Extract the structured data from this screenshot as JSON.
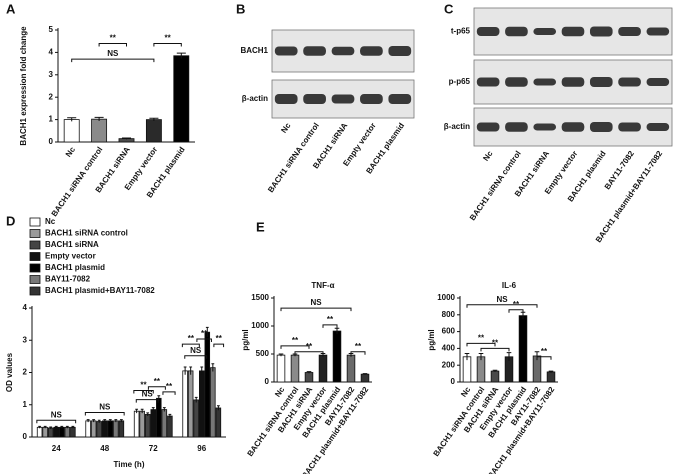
{
  "chart_data": [
    {
      "type": "bar",
      "panel_label": "A",
      "ylabel": "BACH1 expression fold change",
      "categories": [
        "Nc",
        "BACH1 siRNA control",
        "BACH1 siRNA",
        "Empty vector",
        "BACH1 plasmid"
      ],
      "values": [
        1.0,
        1.02,
        0.15,
        1.0,
        3.85
      ],
      "errors": [
        0.08,
        0.08,
        0.03,
        0.06,
        0.12
      ],
      "colors": [
        "#ffffff",
        "#8a8a8a",
        "#4a4a4a",
        "#2a2a2a",
        "#000000"
      ],
      "ylim": [
        0,
        5
      ],
      "yticks": [
        0,
        1,
        2,
        3,
        4,
        5
      ],
      "annotations": [
        "**",
        "NS",
        "**"
      ]
    },
    {
      "type": "bar",
      "panel_label": "D",
      "ylabel": "OD values",
      "xlabel": "Time (h)",
      "categories": [
        "24",
        "48",
        "72",
        "96"
      ],
      "series": [
        {
          "name": "Nc",
          "color": "#ffffff",
          "values": [
            0.3,
            0.5,
            0.8,
            2.05
          ],
          "errors": [
            0.03,
            0.04,
            0.06,
            0.12
          ]
        },
        {
          "name": "BACH1 siRNA control",
          "color": "#9a9a9a",
          "values": [
            0.3,
            0.5,
            0.8,
            2.05
          ],
          "errors": [
            0.03,
            0.04,
            0.06,
            0.12
          ]
        },
        {
          "name": "BACH1 siRNA",
          "color": "#444444",
          "values": [
            0.28,
            0.48,
            0.7,
            1.15
          ],
          "errors": [
            0.03,
            0.04,
            0.05,
            0.08
          ]
        },
        {
          "name": "Empty vector",
          "color": "#111111",
          "values": [
            0.3,
            0.5,
            0.85,
            2.05
          ],
          "errors": [
            0.03,
            0.04,
            0.06,
            0.12
          ]
        },
        {
          "name": "BACH1 plasmid",
          "color": "#000000",
          "values": [
            0.3,
            0.5,
            1.2,
            3.25
          ],
          "errors": [
            0.03,
            0.04,
            0.08,
            0.15
          ]
        },
        {
          "name": "BAY11-7082",
          "color": "#777777",
          "values": [
            0.3,
            0.5,
            0.85,
            2.15
          ],
          "errors": [
            0.03,
            0.04,
            0.06,
            0.12
          ]
        },
        {
          "name": "BACH1 plasmid+BAY11-7082",
          "color": "#333333",
          "values": [
            0.3,
            0.5,
            0.65,
            0.9
          ],
          "errors": [
            0.03,
            0.04,
            0.05,
            0.07
          ]
        }
      ],
      "ylim": [
        0,
        4
      ],
      "yticks": [
        0,
        1,
        2,
        3,
        4
      ],
      "annotations": [
        "NS",
        "NS",
        "**",
        "**",
        "**",
        "NS",
        "**",
        "**",
        "**",
        "NS"
      ]
    },
    {
      "type": "bar",
      "panel_label": "E",
      "title": "TNF-α",
      "ylabel": "pg/ml",
      "categories": [
        "Nc",
        "BACH1 siRNA control",
        "BACH1 siRNA",
        "Empty vector",
        "BACH1 plasmid",
        "BAY11-7082",
        "BACH1 plasmid+BAY11-7082"
      ],
      "values": [
        480,
        480,
        170,
        480,
        910,
        480,
        140
      ],
      "errors": [
        20,
        20,
        15,
        30,
        50,
        30,
        10
      ],
      "colors": [
        "#ffffff",
        "#8a8a8a",
        "#4a4a4a",
        "#222222",
        "#000000",
        "#6a6a6a",
        "#333333"
      ],
      "ylim": [
        0,
        1500
      ],
      "yticks": [
        0,
        500,
        1000,
        1500
      ],
      "annotations": [
        "NS",
        "**",
        "**",
        "**",
        "**"
      ]
    },
    {
      "type": "bar",
      "title": "IL-6",
      "ylabel": "pg/ml",
      "categories": [
        "Nc",
        "BACH1 siRNA control",
        "BACH1 siRNA",
        "Empty vector",
        "BACH1 plasmid",
        "BAY11-7082",
        "BACH1 plasmid+BAY11-7082"
      ],
      "values": [
        300,
        300,
        130,
        300,
        790,
        310,
        120
      ],
      "errors": [
        40,
        40,
        10,
        50,
        40,
        50,
        10
      ],
      "colors": [
        "#ffffff",
        "#8a8a8a",
        "#4a4a4a",
        "#222222",
        "#000000",
        "#6a6a6a",
        "#333333"
      ],
      "ylim": [
        0,
        1000
      ],
      "yticks": [
        0,
        200,
        400,
        600,
        800,
        1000
      ],
      "annotations": [
        "NS",
        "**",
        "**",
        "**",
        "**"
      ]
    }
  ],
  "blots": [
    {
      "panel_label": "B",
      "rows": [
        "BACH1",
        "β-actin"
      ],
      "lanes": [
        "Nc",
        "BACH1 siRNA control",
        "BACH1 siRNA",
        "Empty vector",
        "BACH1 plasmid"
      ]
    },
    {
      "panel_label": "C",
      "rows": [
        "t-p65",
        "p-p65",
        "β-actin"
      ],
      "lanes": [
        "Nc",
        "BACH1 siRNA control",
        "BACH1 siRNA",
        "Empty vector",
        "BACH1 plasmid",
        "BAY11-7082",
        "BACH1 plasmid+BAY11-7082"
      ]
    }
  ]
}
